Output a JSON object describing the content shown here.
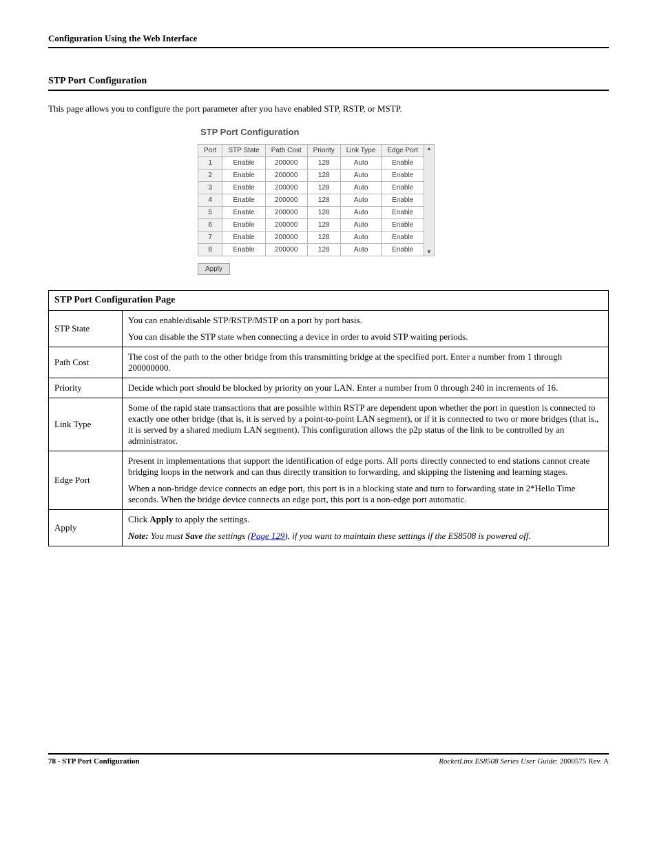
{
  "header": {
    "running_head": "Configuration Using the Web Interface"
  },
  "section": {
    "title": "STP Port Configuration",
    "intro": "This page allows you to configure the port parameter after you have enabled STP, RSTP, or MSTP."
  },
  "screenshot": {
    "title": "STP Port Configuration",
    "columns": [
      "Port",
      "STP State",
      "Path Cost",
      "Priority",
      "Link Type",
      "Edge Port"
    ],
    "rows": [
      [
        "1",
        "Enable",
        "200000",
        "128",
        "Auto",
        "Enable"
      ],
      [
        "2",
        "Enable",
        "200000",
        "128",
        "Auto",
        "Enable"
      ],
      [
        "3",
        "Enable",
        "200000",
        "128",
        "Auto",
        "Enable"
      ],
      [
        "4",
        "Enable",
        "200000",
        "128",
        "Auto",
        "Enable"
      ],
      [
        "5",
        "Enable",
        "200000",
        "128",
        "Auto",
        "Enable"
      ],
      [
        "6",
        "Enable",
        "200000",
        "128",
        "Auto",
        "Enable"
      ],
      [
        "7",
        "Enable",
        "200000",
        "128",
        "Auto",
        "Enable"
      ],
      [
        "8",
        "Enable",
        "200000",
        "128",
        "Auto",
        "Enable"
      ]
    ],
    "apply_label": "Apply",
    "scroll_up": "▲",
    "scroll_down": "▼"
  },
  "desc_table": {
    "caption": "STP Port Configuration Page",
    "rows": [
      {
        "label": "STP State",
        "paras": [
          "You can enable/disable STP/RSTP/MSTP on a port by port basis.",
          "You can disable the STP state when connecting a device in order to avoid STP waiting periods."
        ]
      },
      {
        "label": "Path Cost",
        "paras": [
          "The cost of the path to the other bridge from this transmitting bridge at the specified port. Enter a number from 1 through 200000000."
        ]
      },
      {
        "label": "Priority",
        "paras": [
          "Decide which port should be blocked by priority on your LAN. Enter a number from 0 through 240 in increments of 16."
        ]
      },
      {
        "label": "Link Type",
        "paras": [
          "Some of the rapid state transactions that are possible within RSTP are dependent upon whether the port in question is connected to exactly one other bridge (that is, it is served by a point-to-point LAN segment), or if it is connected to two or more bridges (that is., it is served by a shared medium LAN segment). This configuration allows the p2p status of the link to be controlled by an administrator."
        ]
      },
      {
        "label": "Edge Port",
        "paras": [
          "Present in implementations that support the identification of edge ports. All ports directly connected to end stations cannot create bridging loops in the network and can thus directly transition to forwarding, and skipping the listening and learning stages.",
          "When a non-bridge device connects an edge port, this port is in a blocking state and turn to forwarding state in 2*Hello Time seconds. When the bridge device connects an edge port, this port is a non-edge port automatic."
        ]
      }
    ],
    "apply_row": {
      "label": "Apply",
      "click_prefix": "Click ",
      "click_bold": "Apply",
      "click_suffix": " to apply the settings.",
      "note_prefix": "Note:",
      "note_mid1": "  You must ",
      "note_bold": "Save",
      "note_mid2": " the settings (",
      "note_link": "Page 129",
      "note_suffix": "), if you want to maintain these settings if the ES8508 is powered off."
    }
  },
  "footer": {
    "page_num": "78",
    "page_title": "STP Port Configuration",
    "guide_name": "RocketLinx ES8508 Series  User Guide",
    "doc_rev": ": 2000575 Rev. A"
  }
}
